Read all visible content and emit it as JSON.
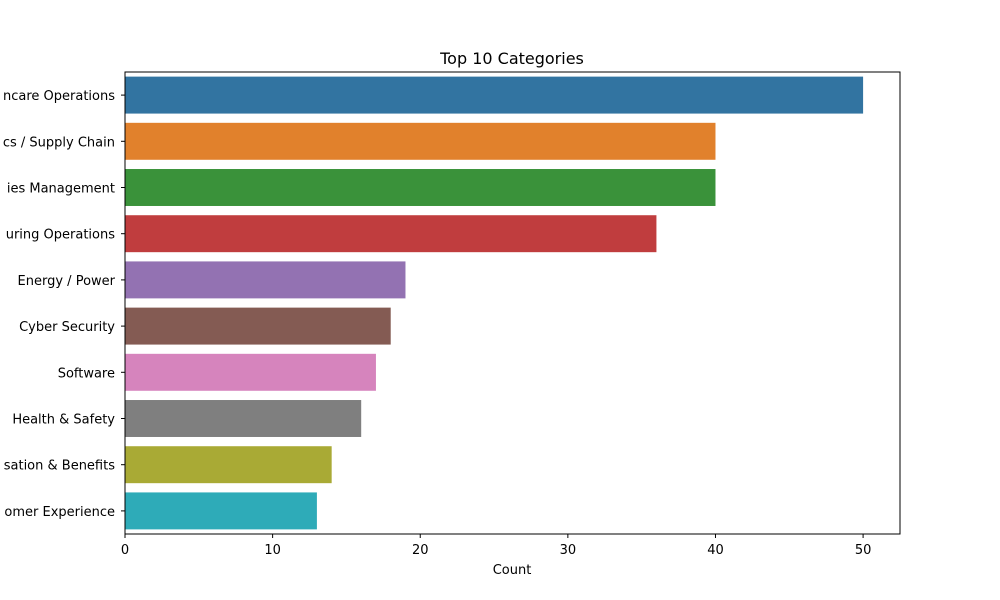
{
  "chart_data": {
    "type": "bar",
    "orientation": "horizontal",
    "title": "Top 10 Categories",
    "xlabel": "Count",
    "ylabel": "",
    "xlim": [
      0,
      52.5
    ],
    "xticks": [
      0,
      10,
      20,
      30,
      40,
      50
    ],
    "grid": false,
    "legend": "none",
    "categories": [
      "Healthcare Operations",
      "Logistics / Supply Chain",
      "Facilities Management",
      "Manufacturing Operations",
      "Energy / Power",
      "Cyber Security",
      "Software",
      "Health & Safety",
      "Compensation & Benefits",
      "Customer Experience"
    ],
    "category_labels_visible": [
      "ncare Operations",
      "cs / Supply Chain",
      "ies Management",
      "uring Operations",
      "Energy / Power",
      "Cyber Security",
      "Software",
      "Health & Safety",
      "sation & Benefits",
      "omer Experience"
    ],
    "values": [
      50,
      40,
      40,
      36,
      19,
      18,
      17,
      16,
      14,
      13
    ],
    "colors": [
      "#3274a1",
      "#e1812c",
      "#3a923a",
      "#c03d3e",
      "#9372b2",
      "#845b53",
      "#d684bd",
      "#7f7f7f",
      "#a9aa35",
      "#2eabb8"
    ]
  }
}
